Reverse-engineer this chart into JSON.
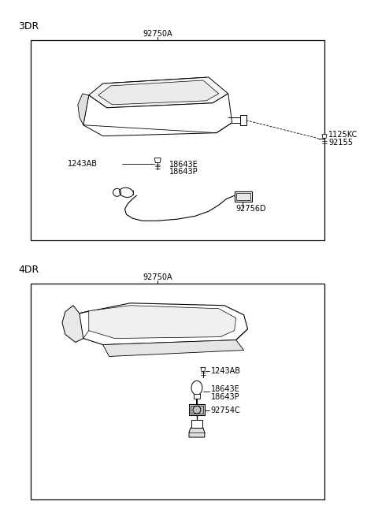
{
  "bg_color": "#ffffff",
  "line_color": "#000000",
  "fig_width": 4.8,
  "fig_height": 6.55,
  "dpi": 100,
  "section_3dr": "3DR",
  "section_4dr": "4DR",
  "lbl_92750A": "92750A",
  "lbl_1243AB": "1243AB",
  "lbl_18643E": "18643E",
  "lbl_18643P": "18643P",
  "lbl_92756D": "92756D",
  "lbl_1125KC": "1125KC",
  "lbl_92155": "92155",
  "lbl_92754C": "92754C",
  "font_size": 7.0,
  "section_font_size": 9.0
}
